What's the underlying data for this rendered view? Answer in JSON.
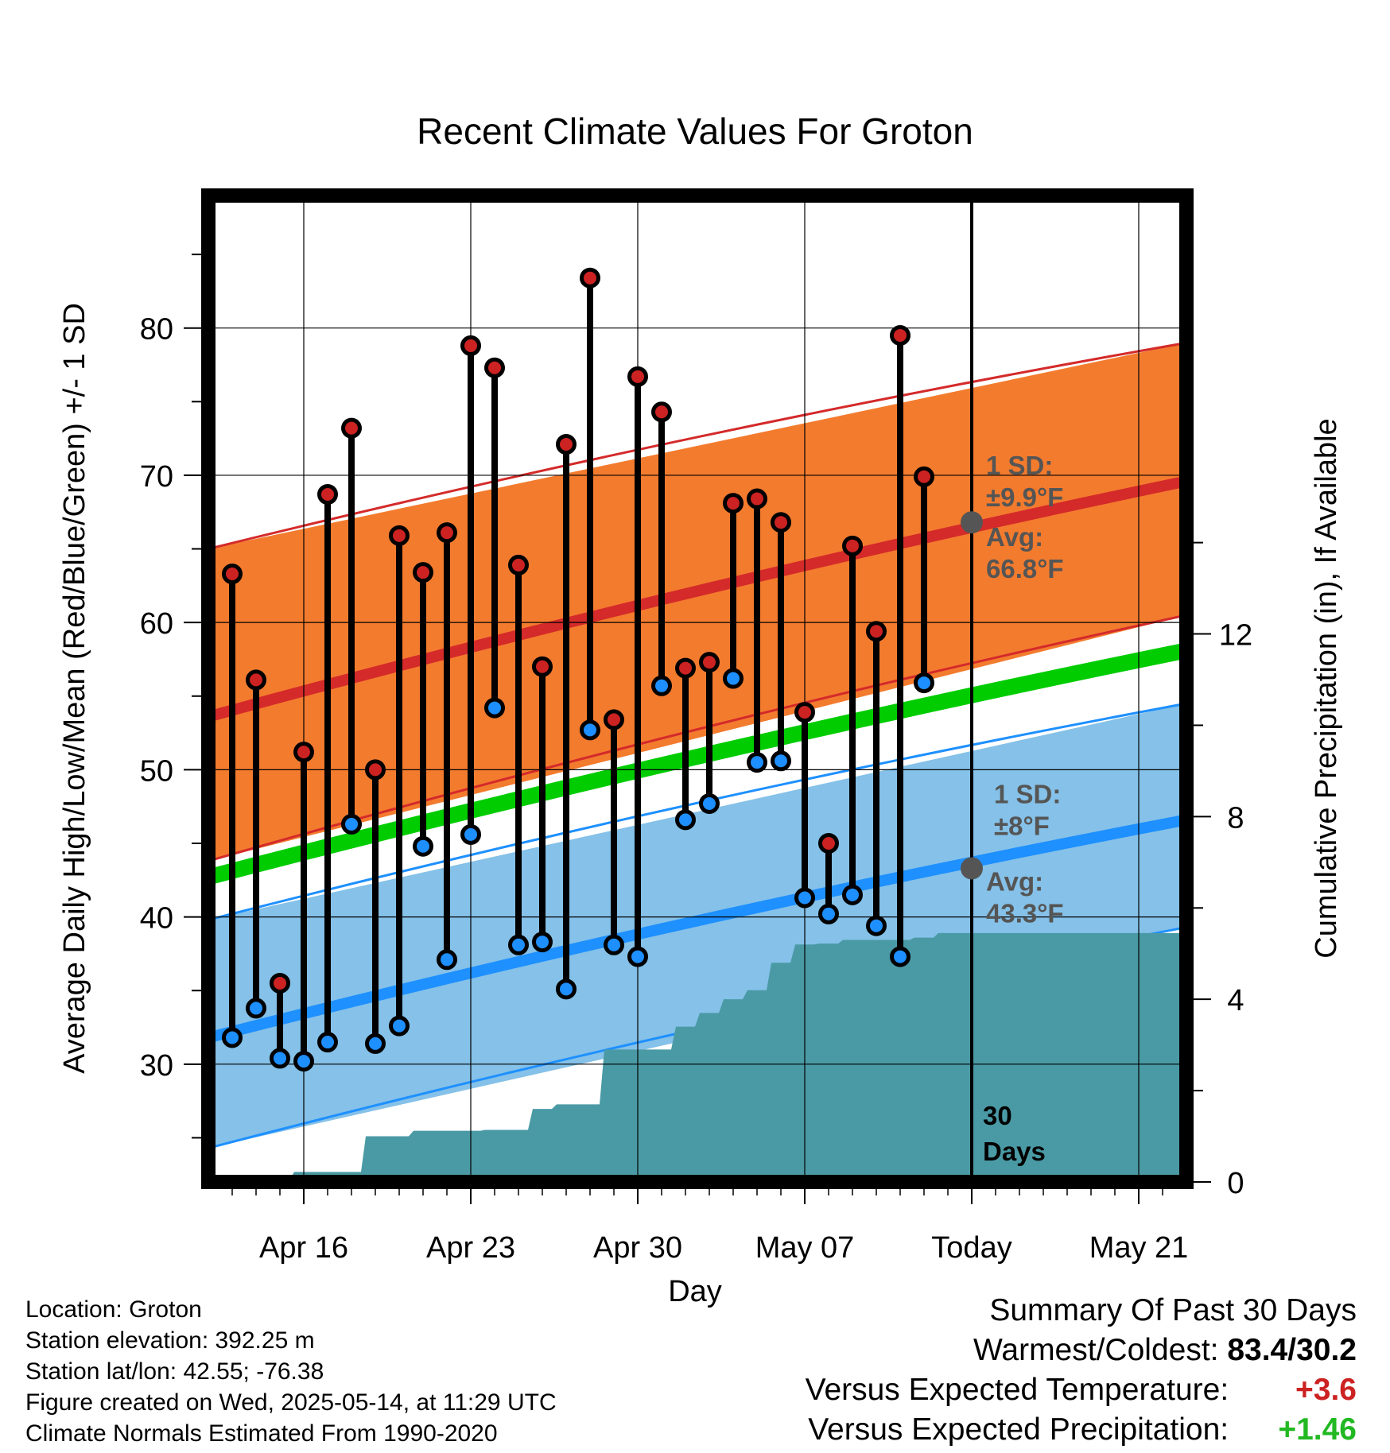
{
  "chart_data": {
    "type": "line",
    "title": "Recent Climate Values For Groton",
    "xlabel": "Day",
    "ylabel": "Average Daily High/Low/Mean (Red/Blue/Green) +/- 1 SD",
    "y2label": "Cumulative Precipitation (in), If Available",
    "ylim": [
      22,
      89
    ],
    "y2lim": [
      0,
      21.6
    ],
    "yticks": [
      30,
      40,
      50,
      60,
      70,
      80
    ],
    "y2ticks": [
      0,
      4,
      8,
      12
    ],
    "xlim": [
      "2025-04-12",
      "2025-05-23"
    ],
    "xtick_labels": [
      {
        "date": "2025-04-16",
        "label": "Apr 16"
      },
      {
        "date": "2025-04-23",
        "label": "Apr 23"
      },
      {
        "date": "2025-04-30",
        "label": "Apr 30"
      },
      {
        "date": "2025-05-07",
        "label": "May 07"
      },
      {
        "date": "2025-05-14",
        "label": "Today"
      },
      {
        "date": "2025-05-21",
        "label": "May 21"
      }
    ],
    "today": "2025-05-14",
    "normals": {
      "high_mean": {
        "start": 53.6,
        "end": 69.6
      },
      "high_upper": {
        "start": 65.0,
        "end": 79.0
      },
      "high_lower": {
        "start": 43.8,
        "end": 60.5
      },
      "low_mean": {
        "start": 31.8,
        "end": 46.6
      },
      "low_upper": {
        "start": 39.8,
        "end": 54.5
      },
      "low_lower": {
        "start": 24.3,
        "end": 39.3
      },
      "mean_mean": {
        "start": 42.7,
        "end": 58.1
      }
    },
    "series": [
      {
        "name": "High",
        "color": "#cc2222",
        "dates": [
          "2025-04-13",
          "2025-04-14",
          "2025-04-15",
          "2025-04-16",
          "2025-04-17",
          "2025-04-18",
          "2025-04-19",
          "2025-04-20",
          "2025-04-21",
          "2025-04-22",
          "2025-04-23",
          "2025-04-24",
          "2025-04-25",
          "2025-04-26",
          "2025-04-27",
          "2025-04-28",
          "2025-04-29",
          "2025-04-30",
          "2025-05-01",
          "2025-05-02",
          "2025-05-03",
          "2025-05-04",
          "2025-05-05",
          "2025-05-06",
          "2025-05-07",
          "2025-05-08",
          "2025-05-09",
          "2025-05-10",
          "2025-05-11",
          "2025-05-12",
          "2025-05-13"
        ],
        "values": [
          63.3,
          56.1,
          35.5,
          51.2,
          68.7,
          73.2,
          50.0,
          65.9,
          63.4,
          66.1,
          78.8,
          77.3,
          63.9,
          57.0,
          72.1,
          83.4,
          53.4,
          76.7,
          74.3,
          56.9,
          57.3,
          68.1,
          68.4,
          66.8,
          53.9,
          45.0,
          65.2,
          59.4,
          79.5,
          69.9,
          null
        ]
      },
      {
        "name": "Low",
        "color": "#1e8fff",
        "dates": [
          "2025-04-13",
          "2025-04-14",
          "2025-04-15",
          "2025-04-16",
          "2025-04-17",
          "2025-04-18",
          "2025-04-19",
          "2025-04-20",
          "2025-04-21",
          "2025-04-22",
          "2025-04-23",
          "2025-04-24",
          "2025-04-25",
          "2025-04-26",
          "2025-04-27",
          "2025-04-28",
          "2025-04-29",
          "2025-04-30",
          "2025-05-01",
          "2025-05-02",
          "2025-05-03",
          "2025-05-04",
          "2025-05-05",
          "2025-05-06",
          "2025-05-07",
          "2025-05-08",
          "2025-05-09",
          "2025-05-10",
          "2025-05-11",
          "2025-05-12",
          "2025-05-13"
        ],
        "values": [
          31.8,
          33.8,
          30.4,
          30.2,
          31.5,
          46.3,
          31.4,
          32.6,
          44.8,
          37.1,
          45.6,
          54.2,
          38.1,
          38.3,
          35.1,
          52.7,
          38.1,
          37.3,
          55.7,
          46.6,
          47.7,
          56.2,
          50.5,
          50.6,
          41.3,
          40.2,
          41.5,
          39.4,
          37.3,
          55.9,
          null
        ]
      },
      {
        "name": "Precipitation",
        "color": "#4a9aa5",
        "dates": [
          "2025-04-13",
          "2025-04-14",
          "2025-04-15",
          "2025-04-16",
          "2025-04-17",
          "2025-04-18",
          "2025-04-19",
          "2025-04-20",
          "2025-04-21",
          "2025-04-22",
          "2025-04-23",
          "2025-04-24",
          "2025-04-25",
          "2025-04-26",
          "2025-04-27",
          "2025-04-28",
          "2025-04-29",
          "2025-04-30",
          "2025-05-01",
          "2025-05-02",
          "2025-05-03",
          "2025-05-04",
          "2025-05-05",
          "2025-05-06",
          "2025-05-07",
          "2025-05-08",
          "2025-05-09",
          "2025-05-10",
          "2025-05-11",
          "2025-05-12",
          "2025-05-13",
          "2025-05-14",
          "2025-05-23"
        ],
        "values": [
          0.0,
          0.0,
          0.05,
          0.22,
          0.22,
          0.22,
          1.0,
          1.0,
          1.12,
          1.12,
          1.12,
          1.14,
          1.14,
          1.6,
          1.7,
          1.7,
          2.9,
          2.9,
          2.9,
          3.4,
          3.7,
          4.0,
          4.2,
          4.8,
          5.2,
          5.22,
          5.3,
          5.3,
          5.3,
          5.35,
          5.45,
          5.45,
          5.45
        ]
      }
    ],
    "annotations": {
      "high": {
        "sd_label": "1 SD:",
        "sd_value": "±9.9°F",
        "avg_label": "Avg:",
        "avg_value": "66.8°F",
        "avg": 66.8
      },
      "low": {
        "sd_label": "1 SD:",
        "sd_value": "±8°F",
        "avg_label": "Avg:",
        "avg_value": "43.3°F",
        "avg": 43.3
      },
      "days": {
        "line1": "30",
        "line2": "Days"
      }
    },
    "grid": true
  },
  "colors": {
    "high_band": "#f37b2e",
    "high_line": "#d42a2a",
    "low_band": "#85c1e8",
    "low_line": "#1e90ff",
    "mean_line": "#00cc00",
    "precip": "#4a9aa5",
    "summary_temp": "#cc2222",
    "summary_precip": "#22b822"
  },
  "footer": {
    "location": "Location: Groton",
    "elevation": "Station elevation: 392.25 m",
    "latlon": "Station lat/lon: 42.55; -76.38",
    "created": "Figure created on Wed, 2025-05-14, at 11:29 UTC",
    "normals": "Climate Normals Estimated From 1990-2020"
  },
  "summary": {
    "title": "Summary Of Past 30 Days",
    "warmest_label": "Warmest/Coldest:",
    "warmest_value": "83.4/30.2",
    "temp_label": "Versus Expected Temperature:",
    "temp_value": "+3.6",
    "precip_label": "Versus Expected Precipitation:",
    "precip_value": "+1.46"
  }
}
